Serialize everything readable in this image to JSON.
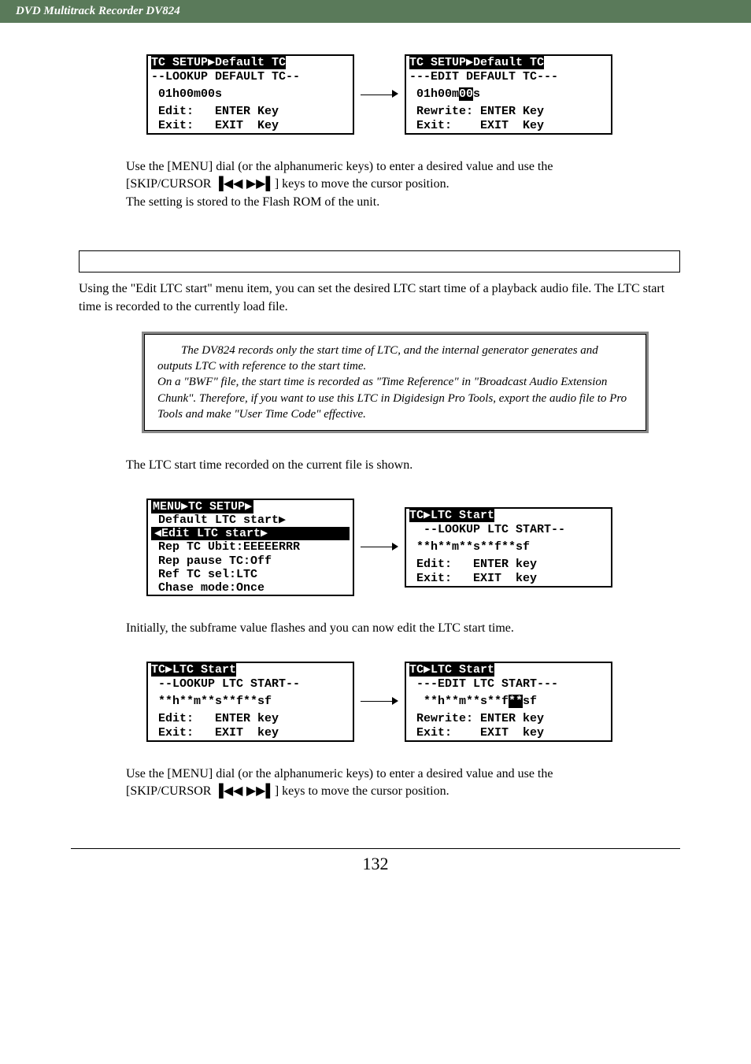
{
  "header": "DVD Multitrack Recorder DV824",
  "lcd_pair_1": {
    "left": {
      "title": "TC SETUP▶Default TC",
      "sub": "--LOOKUP DEFAULT TC--",
      "value": " 01h00m00s",
      "foot1": " Edit:   ENTER Key",
      "foot2": " Exit:   EXIT  Key"
    },
    "right": {
      "title": "TC SETUP▶Default TC",
      "sub": "---EDIT DEFAULT TC---",
      "value_pre": " 01h00m",
      "value_edit": "00",
      "value_post": "s",
      "foot1": " Rewrite: ENTER Key",
      "foot2": " Exit:    EXIT  Key"
    }
  },
  "para1a": "Use the [MENU] dial (or the alphanumeric keys) to enter a desired value and use the",
  "para1b_pre": "[SKIP/CURSOR ",
  "para1b_icons": "▐◀◀ ▶▶▌",
  "para1b_post": "] keys to move the cursor position.",
  "para1c": "The setting is stored to the Flash ROM of the unit.",
  "section_intro": "Using the \"Edit LTC start\" menu item, you can set the desired LTC start time of a playback audio file.  The LTC start time is recorded to the currently load file.",
  "note": "The DV824 records only the start time of LTC, and the internal generator generates and outputs LTC with reference to the start time.\nOn a \"BWF\" file, the start time is recorded as \"Time Reference\" in \"Broadcast Audio Extension Chunk\". Therefore, if you want to use this LTC in Digidesign Pro Tools, export the audio file to Pro Tools and make \"User Time Code\" effective.",
  "para2": "The LTC start time recorded on the current file is shown.",
  "menu_lcd": {
    "header": "MENU▶TC SETUP▶",
    "rows": [
      " Default LTC start▶",
      " Rep TC Ubit:EEEEERRR",
      " Rep pause TC:Off",
      " Ref TC sel:LTC",
      " Chase mode:Once"
    ],
    "selected": "◀Edit LTC start▶"
  },
  "ltc_start_lcd": {
    "title": "TC▶LTC Start",
    "sub": "  --LOOKUP LTC START--",
    "value": " **h**m**s**f**sf",
    "foot1": " Edit:   ENTER key",
    "foot2": " Exit:   EXIT  key"
  },
  "para3": "Initially, the subframe value flashes and you can now edit the LTC start time.",
  "lcd_pair_2": {
    "left": {
      "title": "TC▶LTC Start",
      "sub": " --LOOKUP LTC START--",
      "value": " **h**m**s**f**sf",
      "foot1": " Edit:   ENTER key",
      "foot2": " Exit:   EXIT  key"
    },
    "right": {
      "title": "TC▶LTC Start",
      "sub": " ---EDIT LTC START---",
      "value_pre": "  **h**m**s**f",
      "value_edit": "**",
      "value_post": "sf",
      "foot1": " Rewrite: ENTER key",
      "foot2": " Exit:    EXIT  key"
    }
  },
  "para4a": "Use the [MENU] dial (or the alphanumeric keys) to enter a desired value and use the",
  "para4b_pre": "[SKIP/CURSOR ",
  "para4b_icons": "▐◀◀ ▶▶▌",
  "para4b_post": "] keys to move the cursor position.",
  "page_number": "132"
}
